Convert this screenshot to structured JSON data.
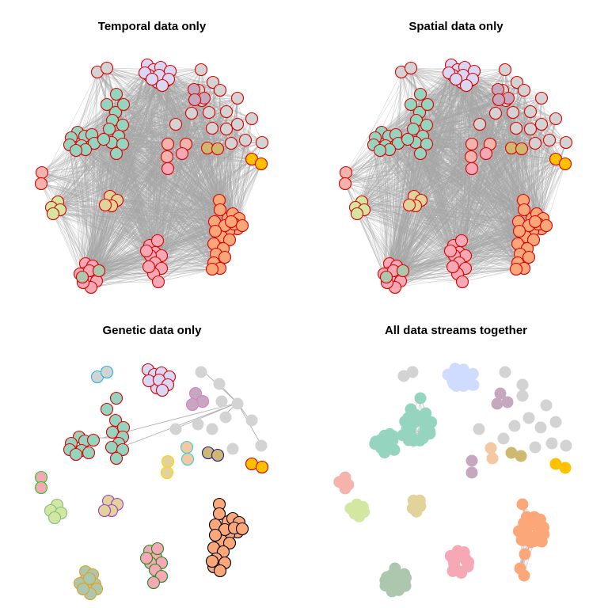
{
  "panels": [
    {
      "title": "Temporal data only",
      "style": "outlined",
      "edges": "dense",
      "clusters": [
        {
          "name": "cluster-lavender",
          "fill": "#d8d8f6",
          "stroke": "#e00000",
          "count": 12
        },
        {
          "name": "cluster-teal",
          "fill": "#95d5bf",
          "stroke": "#e00000",
          "count": 24
        },
        {
          "name": "cluster-salmon",
          "fill": "#f4b3ad",
          "stroke": "#e00000",
          "count": 4
        },
        {
          "name": "cluster-lightgreen",
          "fill": "#d3e6a2",
          "stroke": "#e00000",
          "count": 4
        },
        {
          "name": "cluster-tan",
          "fill": "#e1d39a",
          "stroke": "#e00000",
          "count": 4
        },
        {
          "name": "cluster-grey",
          "fill": "#d3d3d3",
          "stroke": "#e00000",
          "count": 14
        },
        {
          "name": "cluster-pink",
          "fill": "#f6a9b4",
          "stroke": "#e00000",
          "count": 34
        },
        {
          "name": "cluster-orange",
          "fill": "#fca77a",
          "stroke": "#e00000",
          "count": 32
        },
        {
          "name": "cluster-mauve",
          "fill": "#c6a8be",
          "stroke": "#e00000",
          "count": 3
        },
        {
          "name": "cluster-gold",
          "fill": "#ffc000",
          "stroke": "#e00000",
          "count": 2
        }
      ]
    },
    {
      "title": "Spatial data only",
      "style": "outlined",
      "edges": "dense"
    },
    {
      "title": "Genetic data only",
      "style": "outlined-multicolor",
      "edges": "sparse"
    },
    {
      "title": "All data streams together",
      "style": "filled",
      "edges": "within-cluster"
    }
  ],
  "colors": {
    "edge": "#a6a6a6",
    "background": "#ffffff"
  }
}
